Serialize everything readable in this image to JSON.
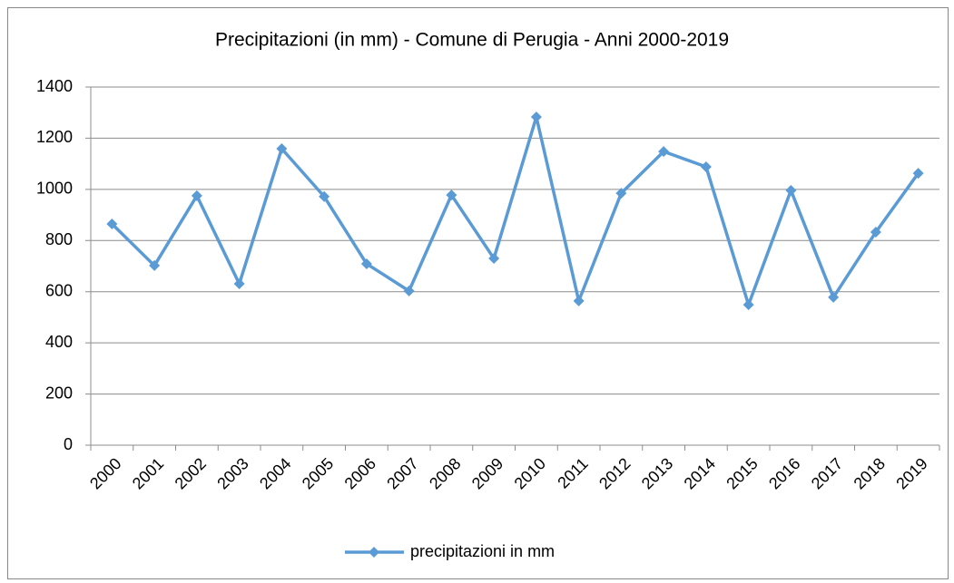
{
  "chart_data": {
    "type": "line",
    "title": "Precipitazioni (in mm) - Comune di Perugia - Anni 2000-2019",
    "categories": [
      "2000",
      "2001",
      "2002",
      "2003",
      "2004",
      "2005",
      "2006",
      "2007",
      "2008",
      "2009",
      "2010",
      "2011",
      "2012",
      "2013",
      "2014",
      "2015",
      "2016",
      "2017",
      "2018",
      "2019"
    ],
    "series": [
      {
        "name": "precipitazioni in mm",
        "color": "#5b9bd5",
        "values": [
          865,
          702,
          975,
          631,
          1159,
          972,
          709,
          603,
          978,
          730,
          1283,
          564,
          985,
          1148,
          1088,
          549,
          996,
          578,
          833,
          1063
        ]
      }
    ],
    "ylim": [
      0,
      1400
    ],
    "yticks": [
      0,
      200,
      400,
      600,
      800,
      1000,
      1200,
      1400
    ],
    "grid": true,
    "legend": "bottom"
  }
}
